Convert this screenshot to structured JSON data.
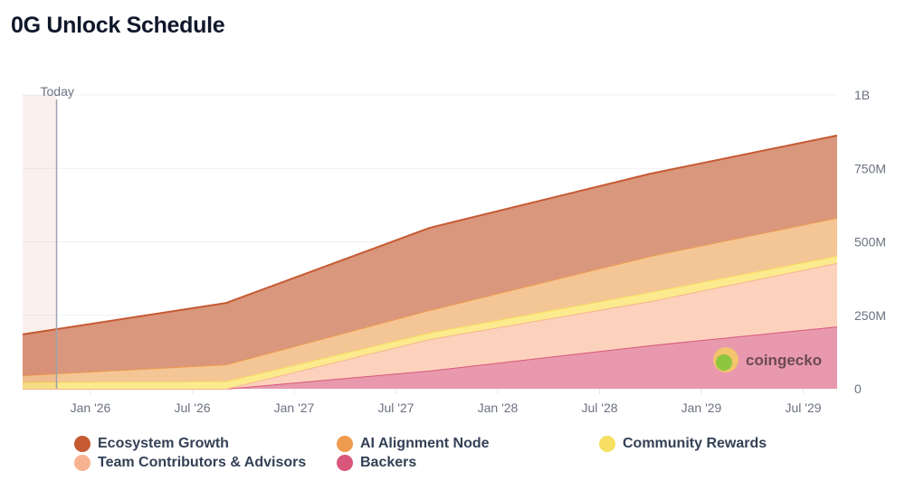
{
  "title": "0G Unlock Schedule",
  "today_label": "Today",
  "watermark": "coingecko",
  "chart_data": {
    "type": "area",
    "stacked": true,
    "title": "0G Unlock Schedule",
    "x": [
      "2025-09",
      "2026-09",
      "2027-09",
      "2028-10",
      "2029-09"
    ],
    "x_range": [
      "2025-09",
      "2029-09"
    ],
    "today": "2025-11",
    "x_ticks": [
      {
        "label": "Jan '26",
        "date": "2026-01"
      },
      {
        "label": "Jul '26",
        "date": "2026-07"
      },
      {
        "label": "Jan '27",
        "date": "2027-01"
      },
      {
        "label": "Jul '27",
        "date": "2027-07"
      },
      {
        "label": "Jan '28",
        "date": "2028-01"
      },
      {
        "label": "Jul '28",
        "date": "2028-07"
      },
      {
        "label": "Jan '29",
        "date": "2029-01"
      },
      {
        "label": "Jul '29",
        "date": "2029-07"
      }
    ],
    "y_ticks": [
      {
        "label": "0",
        "value": 0
      },
      {
        "label": "250M",
        "value": 250
      },
      {
        "label": "500M",
        "value": 500
      },
      {
        "label": "750M",
        "value": 750
      },
      {
        "label": "1B",
        "value": 1000
      }
    ],
    "ylim": [
      0,
      1000
    ],
    "y_unit": "M",
    "grid": true,
    "legend_position": "bottom",
    "series": [
      {
        "name": "Backers",
        "color": "#d9577a",
        "fill": "#e899ae",
        "values": [
          0,
          0,
          62,
          148,
          212
        ]
      },
      {
        "name": "Team Contributors & Advisors",
        "color": "#f7b38f",
        "fill": "#fcd2bc",
        "values": [
          0,
          0,
          107,
          150,
          216
        ]
      },
      {
        "name": "Community Rewards",
        "color": "#f6df62",
        "fill": "#fcea8e",
        "values": [
          22,
          25,
          22,
          31,
          24
        ]
      },
      {
        "name": "AI Alignment Node",
        "color": "#ee9b4f",
        "fill": "#f5c695",
        "values": [
          24,
          58,
          77,
          123,
          130
        ]
      },
      {
        "name": "Ecosystem Growth",
        "color": "#c65a33",
        "fill": "#d9977d",
        "values": [
          139,
          209,
          280,
          280,
          280
        ]
      }
    ],
    "legend_order": [
      "Ecosystem Growth",
      "AI Alignment Node",
      "Community Rewards",
      "Team Contributors & Advisors",
      "Backers"
    ]
  }
}
